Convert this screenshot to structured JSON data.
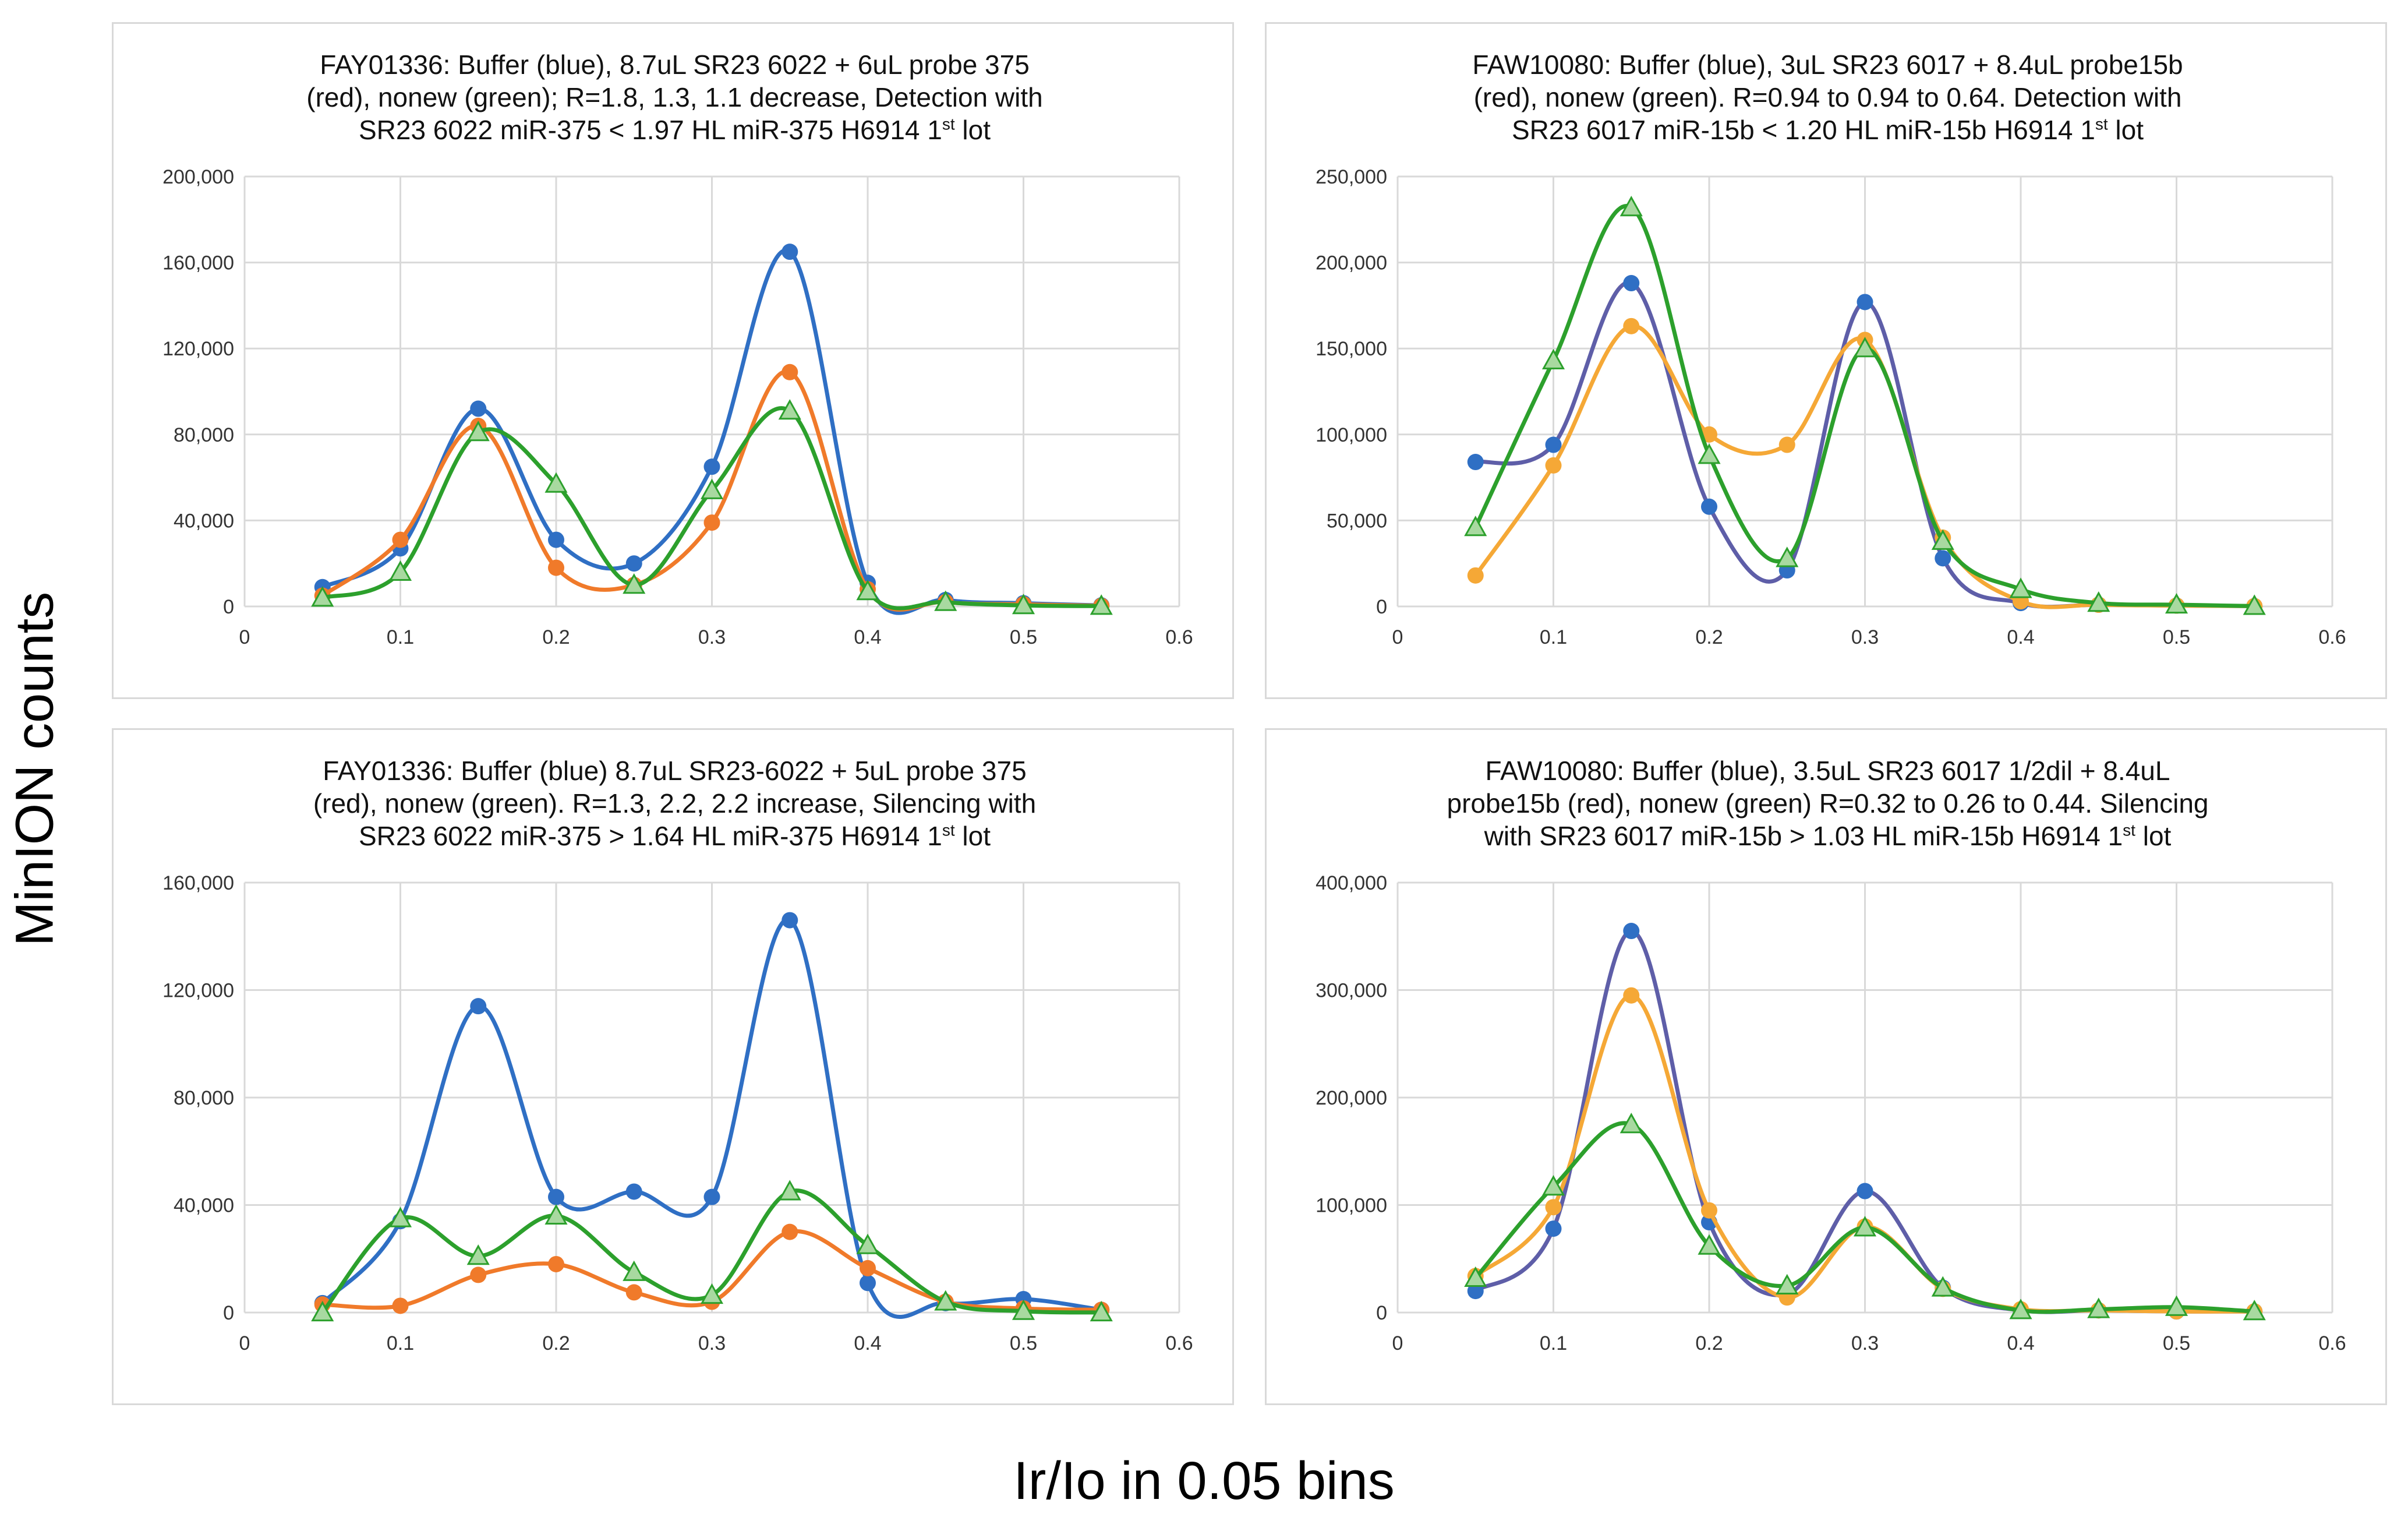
{
  "axis_labels": {
    "y": "MinION counts",
    "x": "Ir/Io in 0.05 bins"
  },
  "colors": {
    "blue": "#2f6fc4",
    "orange": "#f07a2a",
    "green": "#2ca02c",
    "purple": "#5e5ea8",
    "amber": "#f5a836",
    "marker_green": "#a8d9a0"
  },
  "chart_data": [
    {
      "type": "line",
      "title": "FAY01336: Buffer (blue), 8.7uL SR23 6022 + 6uL probe 375 (red), nonew (green); R=1.8, 1.3, 1.1 decrease, Detection with SR23 6022 miR-375 < 1.97 HL miR-375 H6914 1",
      "title_lines": [
        "FAY01336: Buffer (blue), 8.7uL SR23 6022 + 6uL probe 375",
        "(red), nonew (green); R=1.8, 1.3, 1.1 decrease, Detection with",
        "SR23 6022 miR-375 < 1.97 HL miR-375 H6914 1"
      ],
      "title_sup": "st",
      "title_tail": " lot",
      "xlabel": "Ir/Io in 0.05 bins",
      "ylabel": "MinION counts",
      "xlim": [
        0,
        0.6
      ],
      "ylim": [
        0,
        200000
      ],
      "x_ticks": [
        0,
        0.1,
        0.2,
        0.3,
        0.4,
        0.5,
        0.6
      ],
      "x_tick_labels": [
        "0",
        "0.1",
        "0.2",
        "0.3",
        "0.4",
        "0.5",
        "0.6"
      ],
      "y_ticks": [
        0,
        40000,
        80000,
        120000,
        160000,
        200000
      ],
      "y_tick_labels": [
        "0",
        "40,000",
        "80,000",
        "120,000",
        "160,000",
        "200,000"
      ],
      "grid": true,
      "x": [
        0.05,
        0.1,
        0.15,
        0.2,
        0.25,
        0.3,
        0.35,
        0.4,
        0.45,
        0.5,
        0.55
      ],
      "series": [
        {
          "name": "Buffer (blue)",
          "color": "#2f6fc4",
          "marker": "circle",
          "values": [
            9000,
            27000,
            92000,
            31000,
            20000,
            65000,
            165000,
            11000,
            3000,
            1500,
            500
          ]
        },
        {
          "name": "probe (red)",
          "color": "#f07a2a",
          "marker": "circle",
          "values": [
            5000,
            31000,
            84000,
            18000,
            10000,
            39000,
            109000,
            8000,
            2000,
            1000,
            300
          ]
        },
        {
          "name": "nonew (green)",
          "color": "#2ca02c",
          "marker": "triangle",
          "values": [
            4000,
            16000,
            81000,
            57000,
            10000,
            54000,
            91000,
            7000,
            2000,
            500,
            200
          ]
        }
      ]
    },
    {
      "type": "line",
      "title": "FAW10080: Buffer (blue), 3uL SR23 6017 + 8.4uL probe15b (red), nonew (green). R=0.94 to 0.94 to 0.64. Detection with SR23 6017 miR-15b < 1.20 HL miR-15b H6914 1",
      "title_lines": [
        "FAW10080: Buffer (blue), 3uL SR23 6017 + 8.4uL probe15b",
        "(red), nonew (green). R=0.94 to 0.94 to 0.64. Detection with",
        "SR23 6017 miR-15b < 1.20 HL miR-15b H6914 1"
      ],
      "title_sup": "st",
      "title_tail": " lot",
      "xlabel": "Ir/Io in 0.05 bins",
      "ylabel": "MinION counts",
      "xlim": [
        0,
        0.6
      ],
      "ylim": [
        0,
        250000
      ],
      "x_ticks": [
        0,
        0.1,
        0.2,
        0.3,
        0.4,
        0.5,
        0.6
      ],
      "x_tick_labels": [
        "0",
        "0.1",
        "0.2",
        "0.3",
        "0.4",
        "0.5",
        "0.6"
      ],
      "y_ticks": [
        0,
        50000,
        100000,
        150000,
        200000,
        250000
      ],
      "y_tick_labels": [
        "0",
        "50,000",
        "100,000",
        "150,000",
        "200,000",
        "250,000"
      ],
      "grid": true,
      "x": [
        0.05,
        0.1,
        0.15,
        0.2,
        0.25,
        0.3,
        0.35,
        0.4,
        0.45,
        0.5,
        0.55
      ],
      "series": [
        {
          "name": "Buffer (blue)",
          "color": "#5e5ea8",
          "marker": "circle",
          "marker_color": "#2f6fc4",
          "values": [
            84000,
            94000,
            188000,
            58000,
            21000,
            177000,
            28000,
            2000,
            1000,
            500,
            200
          ]
        },
        {
          "name": "probe (red)",
          "color": "#f5a836",
          "marker": "circle",
          "marker_color": "#f5a836",
          "values": [
            18000,
            82000,
            163000,
            100000,
            94000,
            155000,
            40000,
            3000,
            1000,
            500,
            200
          ]
        },
        {
          "name": "nonew (green)",
          "color": "#2ca02c",
          "marker": "triangle",
          "values": [
            46000,
            143000,
            232000,
            88000,
            28000,
            150000,
            38000,
            10000,
            2000,
            1000,
            200
          ]
        }
      ]
    },
    {
      "type": "line",
      "title": "FAY01336: Buffer (blue) 8.7uL SR23-6022 + 5uL probe 375 (red), nonew (green). R=1.3, 2.2, 2.2 increase, Silencing with SR23 6022 miR-375 > 1.64 HL miR-375 H6914 1",
      "title_lines": [
        "FAY01336: Buffer (blue) 8.7uL SR23-6022 + 5uL probe 375",
        "(red), nonew (green). R=1.3, 2.2, 2.2  increase, Silencing with",
        "SR23 6022 miR-375 > 1.64 HL miR-375 H6914 1"
      ],
      "title_sup": "st",
      "title_tail": " lot",
      "xlabel": "Ir/Io in 0.05 bins",
      "ylabel": "MinION counts",
      "xlim": [
        0,
        0.6
      ],
      "ylim": [
        0,
        160000
      ],
      "x_ticks": [
        0,
        0.1,
        0.2,
        0.3,
        0.4,
        0.5,
        0.6
      ],
      "x_tick_labels": [
        "0",
        "0.1",
        "0.2",
        "0.3",
        "0.4",
        "0.5",
        "0.6"
      ],
      "y_ticks": [
        0,
        40000,
        80000,
        120000,
        160000
      ],
      "y_tick_labels": [
        "0",
        "40,000",
        "80,000",
        "120,000",
        "160,000"
      ],
      "grid": true,
      "x": [
        0.05,
        0.1,
        0.15,
        0.2,
        0.25,
        0.3,
        0.35,
        0.4,
        0.45,
        0.5,
        0.55
      ],
      "series": [
        {
          "name": "Buffer (blue)",
          "color": "#2f6fc4",
          "marker": "circle",
          "values": [
            3500,
            34000,
            114000,
            43000,
            45000,
            43000,
            146000,
            11000,
            3500,
            5000,
            1000
          ]
        },
        {
          "name": "probe (red)",
          "color": "#f07a2a",
          "marker": "circle",
          "values": [
            3000,
            2500,
            14000,
            18000,
            7500,
            4000,
            30000,
            16500,
            4000,
            1500,
            1000
          ]
        },
        {
          "name": "nonew (green)",
          "color": "#2ca02c",
          "marker": "triangle",
          "values": [
            0,
            35000,
            21000,
            36000,
            15000,
            6500,
            45000,
            25000,
            4000,
            500,
            0
          ]
        }
      ]
    },
    {
      "type": "line",
      "title": "FAW10080: Buffer (blue), 3.5uL SR23 6017 1/2dil + 8.4uL probe15b (red), nonew (green) R=0.32 to 0.26 to 0.44. Silencing with SR23 6017 miR-15b > 1.03 HL miR-15b H6914 1",
      "title_lines": [
        "FAW10080: Buffer (blue), 3.5uL SR23 6017 1/2dil + 8.4uL",
        "probe15b (red), nonew (green) R=0.32 to 0.26 to 0.44. Silencing",
        "with SR23 6017 miR-15b > 1.03 HL miR-15b H6914 1"
      ],
      "title_sup": "st",
      "title_tail": " lot",
      "xlabel": "Ir/Io in 0.05 bins",
      "ylabel": "MinION counts",
      "xlim": [
        0,
        0.6
      ],
      "ylim": [
        0,
        400000
      ],
      "x_ticks": [
        0,
        0.1,
        0.2,
        0.3,
        0.4,
        0.5,
        0.6
      ],
      "x_tick_labels": [
        "0",
        "0.1",
        "0.2",
        "0.3",
        "0.4",
        "0.5",
        "0.6"
      ],
      "y_ticks": [
        0,
        100000,
        200000,
        300000,
        400000
      ],
      "y_tick_labels": [
        "0",
        "100,000",
        "200,000",
        "300,000",
        "400,000"
      ],
      "grid": true,
      "x": [
        0.05,
        0.1,
        0.15,
        0.2,
        0.25,
        0.3,
        0.35,
        0.4,
        0.45,
        0.5,
        0.55
      ],
      "series": [
        {
          "name": "Buffer (blue)",
          "color": "#5e5ea8",
          "marker": "circle",
          "marker_color": "#2f6fc4",
          "values": [
            20000,
            78000,
            355000,
            84000,
            17000,
            113000,
            23000,
            2000,
            2000,
            1000,
            1000
          ]
        },
        {
          "name": "probe (red)",
          "color": "#f5a836",
          "marker": "circle",
          "marker_color": "#f5a836",
          "values": [
            34000,
            98000,
            295000,
            95000,
            14000,
            80000,
            22000,
            3000,
            2000,
            1000,
            1000
          ]
        },
        {
          "name": "nonew (green)",
          "color": "#2ca02c",
          "marker": "triangle",
          "values": [
            32000,
            117000,
            175000,
            62000,
            25000,
            79000,
            23000,
            2000,
            3000,
            5000,
            1000
          ]
        }
      ]
    }
  ]
}
